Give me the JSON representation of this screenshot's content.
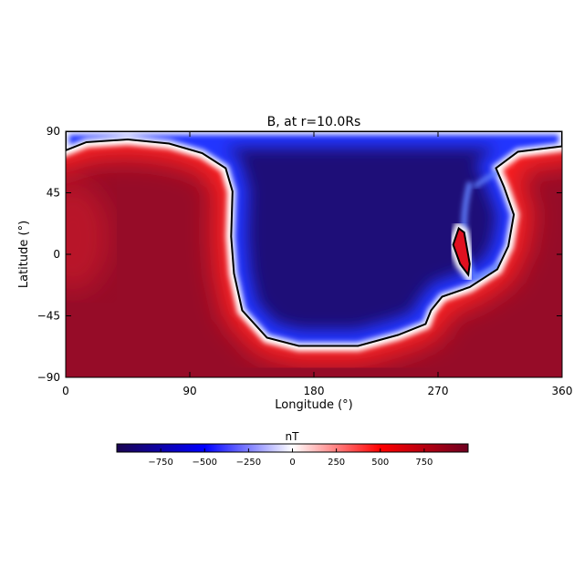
{
  "chart_data": {
    "type": "heatmap",
    "title": "B, at r=10.0Rs",
    "xlabel": "Longitude (°)",
    "ylabel": "Latitude (°)",
    "xlim": [
      0,
      360
    ],
    "ylim": [
      -90,
      90
    ],
    "xticks": [
      "0",
      "90",
      "180",
      "270",
      "360"
    ],
    "xtick_values": [
      0,
      90,
      180,
      270,
      360
    ],
    "yticks": [
      "90",
      "45",
      "0",
      "−45",
      "−90"
    ],
    "ytick_values": [
      90,
      45,
      0,
      -45,
      -90
    ],
    "colorbar": {
      "label": "nT",
      "range": [
        -1000,
        1000
      ],
      "ticks": [
        "−750",
        "−500",
        "−250",
        "0",
        "250",
        "500",
        "750"
      ],
      "tick_values": [
        -750,
        -500,
        -250,
        0,
        250,
        500,
        750
      ],
      "colormap": [
        "#1a0450",
        "#0000ff",
        "#ffffff",
        "#ff0000",
        "#6e0020"
      ]
    },
    "regions": {
      "negative_color": "#1e0e78",
      "positive_color": "#960c28",
      "zero_contour_color": "#000000"
    }
  }
}
